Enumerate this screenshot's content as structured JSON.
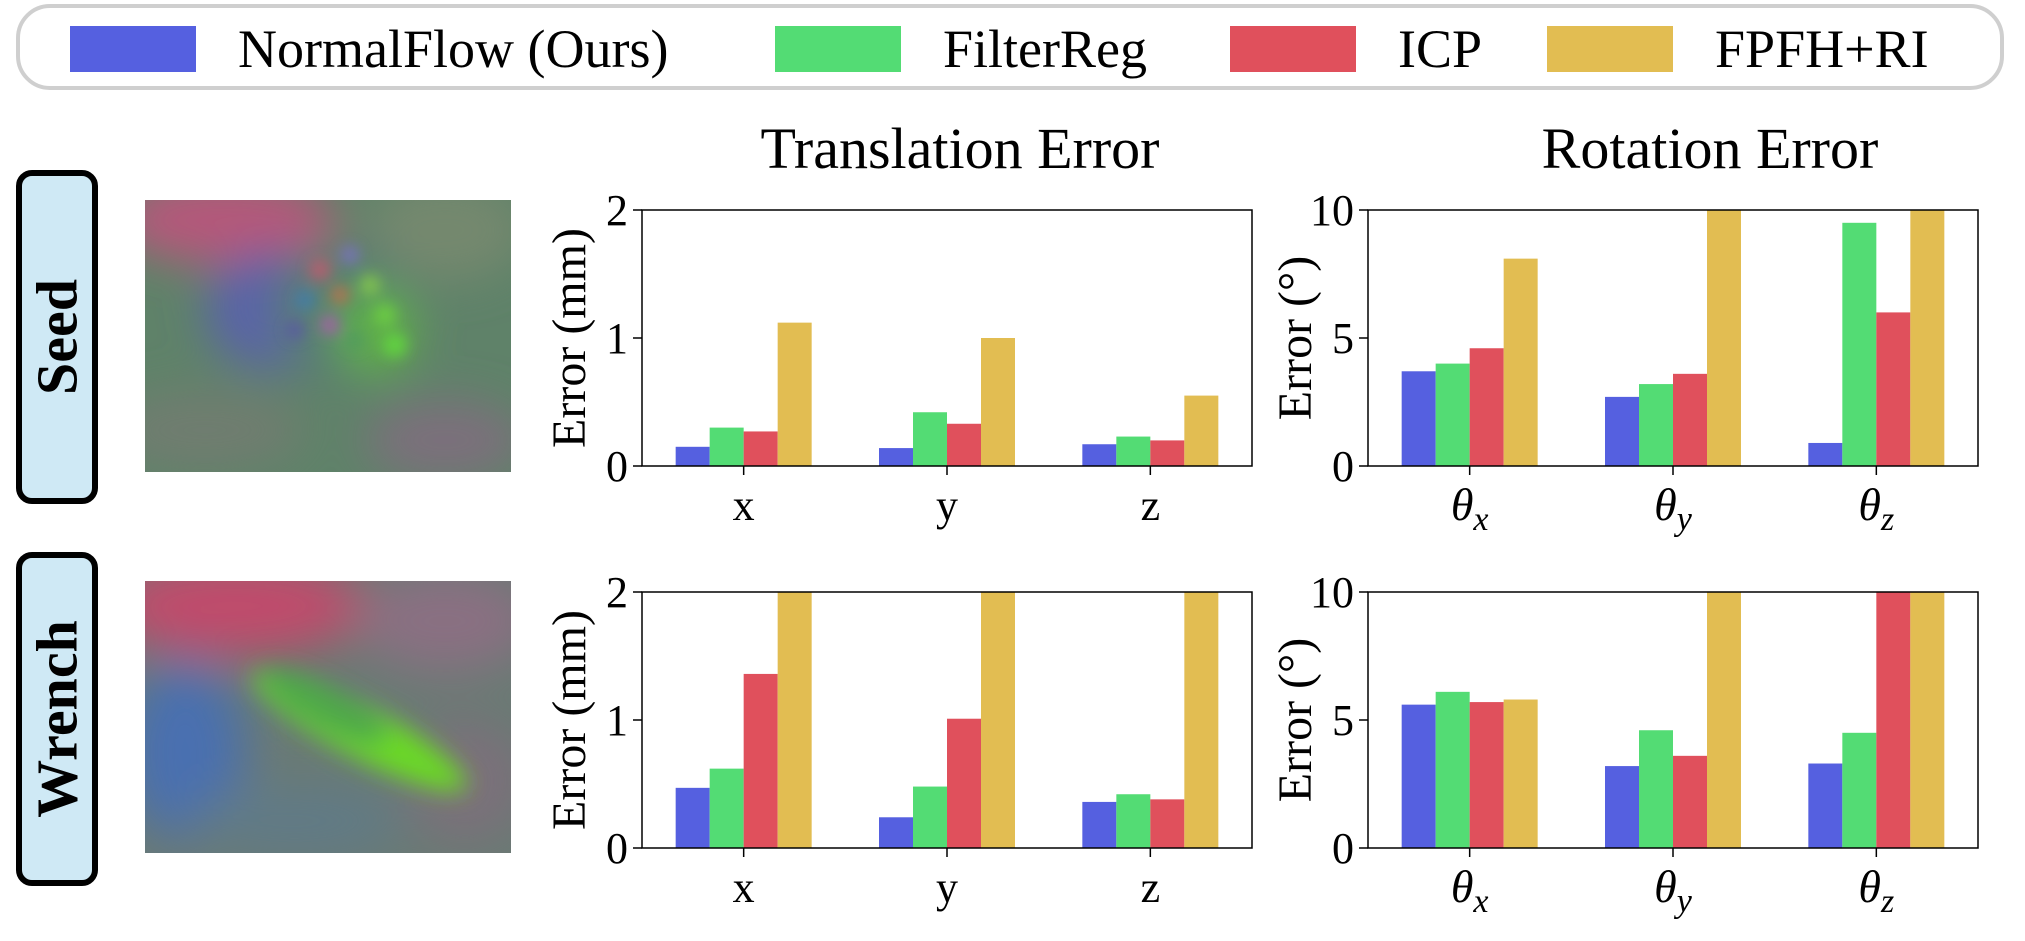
{
  "legend": [
    {
      "name": "NormalFlow (Ours)",
      "color": "#5560e0"
    },
    {
      "name": "FilterReg",
      "color": "#53dc74"
    },
    {
      "name": "ICP",
      "color": "#e0505c"
    },
    {
      "name": "FPFH+RI",
      "color": "#e2bd52"
    }
  ],
  "columns": {
    "translation_title": "Translation Error",
    "rotation_title": "Rotation Error"
  },
  "rows": [
    {
      "label": "Seed",
      "icon": "tactile-normal-map-seed"
    },
    {
      "label": "Wrench",
      "icon": "tactile-normal-map-wrench"
    }
  ],
  "chart_data": [
    {
      "id": "seed-translation",
      "type": "bar",
      "title": "",
      "xlabel": "",
      "ylabel": "Error (mm)",
      "categories": [
        "x",
        "y",
        "z"
      ],
      "category_style": "plain",
      "ylim": [
        0,
        2
      ],
      "yticks": [
        0,
        1,
        2
      ],
      "series": [
        {
          "name": "NormalFlow (Ours)",
          "values": [
            0.15,
            0.14,
            0.17
          ]
        },
        {
          "name": "FilterReg",
          "values": [
            0.3,
            0.42,
            0.23
          ]
        },
        {
          "name": "ICP",
          "values": [
            0.27,
            0.33,
            0.2
          ]
        },
        {
          "name": "FPFH+RI",
          "values": [
            1.12,
            1.0,
            0.55
          ]
        }
      ]
    },
    {
      "id": "seed-rotation",
      "type": "bar",
      "title": "",
      "xlabel": "",
      "ylabel": "Error (°)",
      "categories": [
        "θx",
        "θy",
        "θz"
      ],
      "category_style": "theta",
      "ylim": [
        0,
        10
      ],
      "yticks": [
        0,
        5,
        10
      ],
      "series": [
        {
          "name": "NormalFlow (Ours)",
          "values": [
            3.7,
            2.7,
            0.9
          ]
        },
        {
          "name": "FilterReg",
          "values": [
            4.0,
            3.2,
            9.5
          ]
        },
        {
          "name": "ICP",
          "values": [
            4.6,
            3.6,
            6.0
          ]
        },
        {
          "name": "FPFH+RI",
          "values": [
            8.1,
            10,
            10
          ]
        }
      ]
    },
    {
      "id": "wrench-translation",
      "type": "bar",
      "title": "",
      "xlabel": "",
      "ylabel": "Error (mm)",
      "categories": [
        "x",
        "y",
        "z"
      ],
      "category_style": "plain",
      "ylim": [
        0,
        2
      ],
      "yticks": [
        0,
        1,
        2
      ],
      "series": [
        {
          "name": "NormalFlow (Ours)",
          "values": [
            0.47,
            0.24,
            0.36
          ]
        },
        {
          "name": "FilterReg",
          "values": [
            0.62,
            0.48,
            0.42
          ]
        },
        {
          "name": "ICP",
          "values": [
            1.36,
            1.01,
            0.38
          ]
        },
        {
          "name": "FPFH+RI",
          "values": [
            2,
            2,
            2
          ]
        }
      ]
    },
    {
      "id": "wrench-rotation",
      "type": "bar",
      "title": "",
      "xlabel": "",
      "ylabel": "Error (°)",
      "categories": [
        "θx",
        "θy",
        "θz"
      ],
      "category_style": "theta",
      "ylim": [
        0,
        10
      ],
      "yticks": [
        0,
        5,
        10
      ],
      "series": [
        {
          "name": "NormalFlow (Ours)",
          "values": [
            5.6,
            3.2,
            3.3
          ]
        },
        {
          "name": "FilterReg",
          "values": [
            6.1,
            4.6,
            4.5
          ]
        },
        {
          "name": "ICP",
          "values": [
            5.7,
            3.6,
            10
          ]
        },
        {
          "name": "FPFH+RI",
          "values": [
            5.8,
            10,
            10
          ]
        }
      ]
    }
  ]
}
